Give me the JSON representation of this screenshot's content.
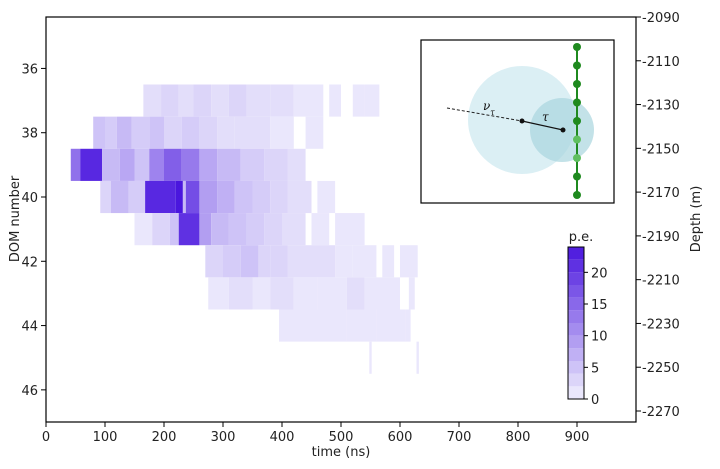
{
  "chart_data": {
    "type": "heatmap",
    "xlabel": "time (ns)",
    "ylabel": "DOM number",
    "y2label": "Depth (m)",
    "xlim": [
      0,
      1000
    ],
    "ylim": [
      47,
      34.4
    ],
    "xticks": [
      0,
      100,
      200,
      300,
      400,
      500,
      600,
      700,
      800,
      900
    ],
    "yticks": [
      36,
      38,
      40,
      42,
      44,
      46
    ],
    "y2ticks": [
      -2090,
      -2110,
      -2130,
      -2150,
      -2170,
      -2190,
      -2210,
      -2230,
      -2250,
      -2270
    ],
    "grid": false,
    "colorbar": {
      "title": "p.e.",
      "range": [
        0,
        24
      ],
      "ticks": [
        0,
        5,
        10,
        15,
        20
      ],
      "low_color": "#f1f0fd",
      "high_color": "#4a16de"
    },
    "rows": [
      {
        "dom": 37,
        "cells": [
          [
            165,
            195,
            2
          ],
          [
            195,
            225,
            3
          ],
          [
            225,
            250,
            2
          ],
          [
            250,
            280,
            3
          ],
          [
            280,
            310,
            2
          ],
          [
            310,
            340,
            3
          ],
          [
            340,
            380,
            2
          ],
          [
            380,
            420,
            2
          ],
          [
            420,
            470,
            1
          ],
          [
            480,
            500,
            1
          ],
          [
            520,
            540,
            1
          ],
          [
            540,
            565,
            1
          ]
        ]
      },
      {
        "dom": 38,
        "cells": [
          [
            80,
            100,
            5
          ],
          [
            100,
            120,
            4
          ],
          [
            120,
            145,
            6
          ],
          [
            145,
            175,
            4
          ],
          [
            175,
            200,
            5
          ],
          [
            200,
            230,
            3
          ],
          [
            230,
            260,
            4
          ],
          [
            260,
            290,
            3
          ],
          [
            290,
            320,
            2
          ],
          [
            320,
            350,
            2
          ],
          [
            350,
            380,
            2
          ],
          [
            380,
            420,
            1
          ],
          [
            440,
            470,
            1
          ]
        ]
      },
      {
        "dom": 39,
        "cells": [
          [
            42,
            58,
            14
          ],
          [
            58,
            95,
            22
          ],
          [
            95,
            125,
            6
          ],
          [
            125,
            150,
            8
          ],
          [
            150,
            175,
            5
          ],
          [
            175,
            200,
            12
          ],
          [
            200,
            230,
            16
          ],
          [
            230,
            260,
            13
          ],
          [
            260,
            290,
            8
          ],
          [
            290,
            330,
            6
          ],
          [
            330,
            370,
            4
          ],
          [
            370,
            410,
            3
          ],
          [
            410,
            440,
            2
          ]
        ]
      },
      {
        "dom": 40,
        "cells": [
          [
            92,
            110,
            3
          ],
          [
            110,
            140,
            6
          ],
          [
            140,
            168,
            4
          ],
          [
            168,
            220,
            22
          ],
          [
            220,
            232,
            24
          ],
          [
            232,
            237,
            6
          ],
          [
            237,
            260,
            18
          ],
          [
            260,
            290,
            9
          ],
          [
            290,
            320,
            7
          ],
          [
            320,
            350,
            5
          ],
          [
            350,
            380,
            4
          ],
          [
            380,
            410,
            3
          ],
          [
            410,
            450,
            2
          ],
          [
            460,
            490,
            1
          ]
        ]
      },
      {
        "dom": 41,
        "cells": [
          [
            150,
            180,
            1
          ],
          [
            180,
            210,
            3
          ],
          [
            210,
            225,
            5
          ],
          [
            225,
            260,
            21
          ],
          [
            260,
            280,
            9
          ],
          [
            280,
            310,
            6
          ],
          [
            310,
            340,
            5
          ],
          [
            340,
            370,
            4
          ],
          [
            370,
            400,
            3
          ],
          [
            400,
            440,
            2
          ],
          [
            450,
            480,
            1
          ],
          [
            490,
            540,
            1
          ]
        ]
      },
      {
        "dom": 42,
        "cells": [
          [
            270,
            300,
            3
          ],
          [
            300,
            330,
            4
          ],
          [
            330,
            360,
            5
          ],
          [
            360,
            380,
            3
          ],
          [
            380,
            410,
            3
          ],
          [
            410,
            450,
            2
          ],
          [
            450,
            490,
            2
          ],
          [
            490,
            520,
            1
          ],
          [
            520,
            560,
            1
          ],
          [
            570,
            590,
            1
          ],
          [
            600,
            630,
            1
          ]
        ]
      },
      {
        "dom": 43,
        "cells": [
          [
            275,
            310,
            1
          ],
          [
            310,
            350,
            2
          ],
          [
            350,
            380,
            1
          ],
          [
            380,
            420,
            2
          ],
          [
            420,
            460,
            1
          ],
          [
            460,
            510,
            1
          ],
          [
            510,
            540,
            2
          ],
          [
            540,
            600,
            1
          ],
          [
            615,
            625,
            1
          ]
        ]
      },
      {
        "dom": 44,
        "cells": [
          [
            395,
            450,
            1
          ],
          [
            450,
            510,
            1
          ],
          [
            510,
            560,
            1
          ],
          [
            560,
            610,
            1
          ],
          [
            610,
            618,
            1
          ]
        ]
      },
      {
        "dom": 45,
        "cells": [
          [
            548,
            552,
            1
          ],
          [
            628,
            632,
            1
          ]
        ]
      }
    ]
  },
  "inset": {
    "direction_label": "ν",
    "direction_subscript": "τ",
    "tau_label": "τ",
    "string_color": "#1f8a1f"
  }
}
